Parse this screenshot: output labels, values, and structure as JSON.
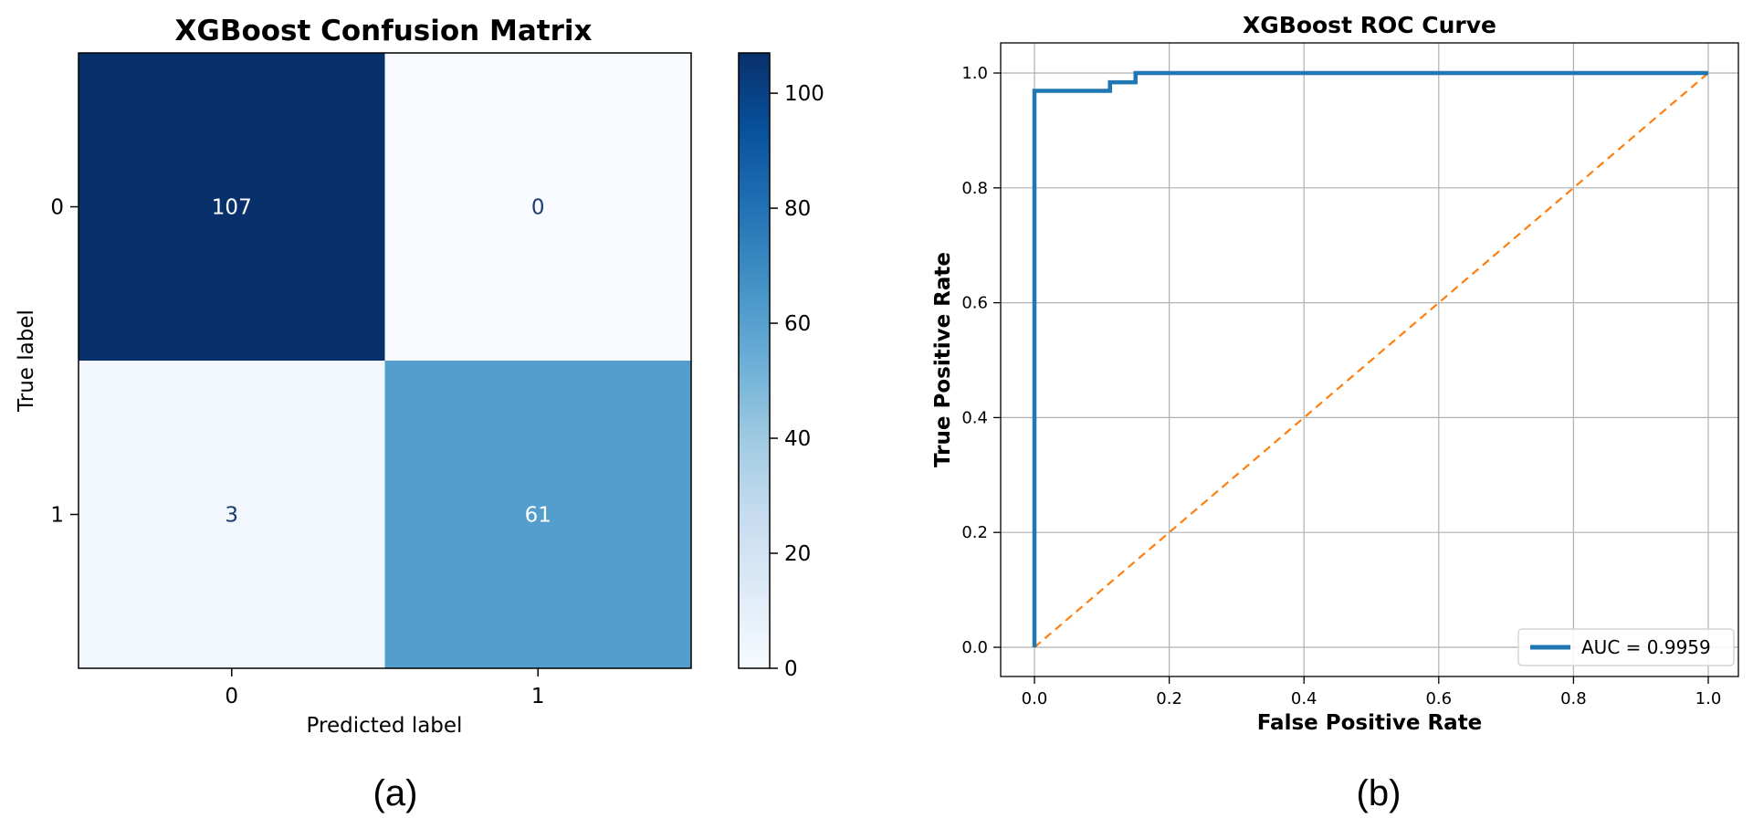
{
  "chart_data": [
    {
      "type": "heatmap",
      "title": "XGBoost Confusion Matrix",
      "xlabel": "Predicted label",
      "ylabel": "True label",
      "x_categories": [
        "0",
        "1"
      ],
      "y_categories": [
        "0",
        "1"
      ],
      "matrix": [
        [
          107,
          0
        ],
        [
          3,
          61
        ]
      ],
      "colormap": "Blues",
      "colorbar": {
        "range": [
          0,
          107
        ],
        "ticks": [
          0,
          20,
          40,
          60,
          80,
          100
        ]
      },
      "caption": "(a)"
    },
    {
      "type": "line",
      "title": "XGBoost ROC Curve",
      "xlabel": "False Positive Rate",
      "ylabel": "True Positive Rate",
      "xlim": [
        0.0,
        1.0
      ],
      "ylim": [
        0.0,
        1.0
      ],
      "xticks": [
        "0.0",
        "0.2",
        "0.4",
        "0.6",
        "0.8",
        "1.0"
      ],
      "yticks": [
        "0.0",
        "0.2",
        "0.4",
        "0.6",
        "0.8",
        "1.0"
      ],
      "grid": true,
      "legend_position": "lower-right",
      "series": [
        {
          "name": "AUC = 0.9959",
          "color": "#1f77b4",
          "style": "solid",
          "x": [
            0.0,
            0.0,
            0.112,
            0.112,
            0.15,
            0.15,
            1.0
          ],
          "y": [
            0.0,
            0.969,
            0.969,
            0.984,
            0.984,
            1.0,
            1.0
          ]
        },
        {
          "color": "#ff7f0e",
          "style": "dashed",
          "x": [
            0.0,
            1.0
          ],
          "y": [
            0.0,
            1.0
          ]
        }
      ],
      "caption": "(b)"
    }
  ]
}
